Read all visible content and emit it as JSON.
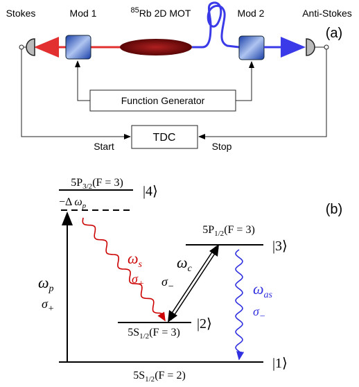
{
  "setup": {
    "stokes": "Stokes",
    "mod1": "Mod 1",
    "mot": {
      "sup": "85",
      "text": "Rb 2D MOT"
    },
    "mod2": "Mod 2",
    "anti_stokes": "Anti-Stokes",
    "panel": "(a)",
    "function_generator": "Function Generator",
    "tdc": "TDC",
    "start": "Start",
    "stop": "Stop"
  },
  "levels": {
    "panel": "(b)",
    "level4": {
      "base": "5P",
      "sub": "3/2",
      "tail": "(F = 3)",
      "ket": "|4⟩"
    },
    "level3": {
      "base": "5P",
      "sub": "1/2",
      "tail": "(F = 3)",
      "ket": "|3⟩"
    },
    "level2": {
      "base": "5S",
      "sub": "1/2",
      "tail": "(F = 3)",
      "ket": "|2⟩"
    },
    "level1": {
      "base": "5S",
      "sub": "1/2",
      "tail": "(F = 2)",
      "ket": "|1⟩"
    }
  },
  "transitions": {
    "detuning": {
      "prefix": "−Δ",
      "symbol": "ω",
      "sub": "p"
    },
    "pump": {
      "symbol": "ω",
      "sub": "p",
      "pol_symbol": "σ",
      "pol_sub": "+"
    },
    "stokes": {
      "symbol": "ω",
      "sub": "s",
      "pol_symbol": "σ",
      "pol_sub": "+"
    },
    "coupling": {
      "symbol": "ω",
      "sub": "c",
      "pol_symbol": "σ",
      "pol_sub": "−"
    },
    "anti_stokes": {
      "symbol": "ω",
      "sub": "as",
      "pol_symbol": "σ",
      "pol_sub": "−"
    }
  }
}
